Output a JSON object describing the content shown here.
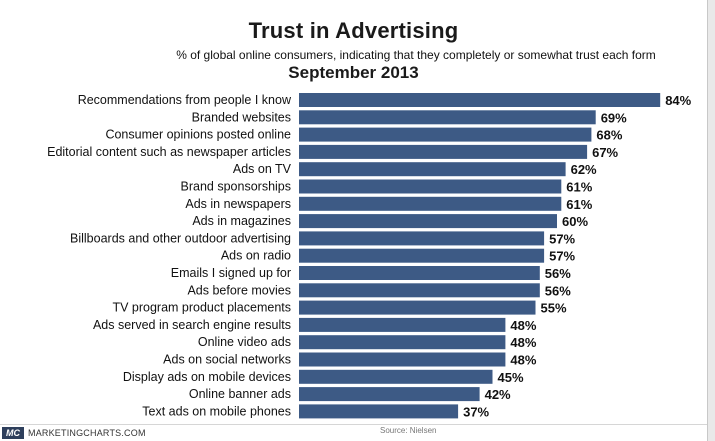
{
  "title": "Trust in Advertising",
  "subtitle": "% of global online consumers, indicating that they completely or somewhat trust each form",
  "date_label": "September 2013",
  "footer": {
    "logo_text": "MC",
    "site": "MARKETINGCHARTS.COM",
    "source": "Source: Nielsen"
  },
  "colors": {
    "bar": "#3d5a85",
    "background": "#ffffff"
  },
  "chart_data": {
    "type": "bar",
    "orientation": "horizontal",
    "title": "Trust in Advertising",
    "subtitle": "% of global online consumers, indicating that they completely or somewhat trust each form",
    "categories": [
      "Recommendations from people I know",
      "Branded websites",
      "Consumer opinions posted online",
      "Editorial content such as newspaper articles",
      "Ads on TV",
      "Brand sponsorships",
      "Ads in newspapers",
      "Ads in magazines",
      "Billboards and other outdoor advertising",
      "Ads on radio",
      "Emails I signed up for",
      "Ads before movies",
      "TV program product placements",
      "Ads served in search engine results",
      "Online video ads",
      "Ads on social networks",
      "Display ads on mobile devices",
      "Online banner ads",
      "Text ads on mobile phones"
    ],
    "values": [
      84,
      69,
      68,
      67,
      62,
      61,
      61,
      60,
      57,
      57,
      56,
      56,
      55,
      48,
      48,
      48,
      45,
      42,
      37
    ],
    "value_labels": [
      "84%",
      "69%",
      "68%",
      "67%",
      "62%",
      "61%",
      "61%",
      "60%",
      "57%",
      "57%",
      "56%",
      "56%",
      "55%",
      "48%",
      "48%",
      "48%",
      "45%",
      "42%",
      "37%"
    ],
    "xlim": [
      0,
      100
    ],
    "grid": false,
    "legend": "none"
  }
}
